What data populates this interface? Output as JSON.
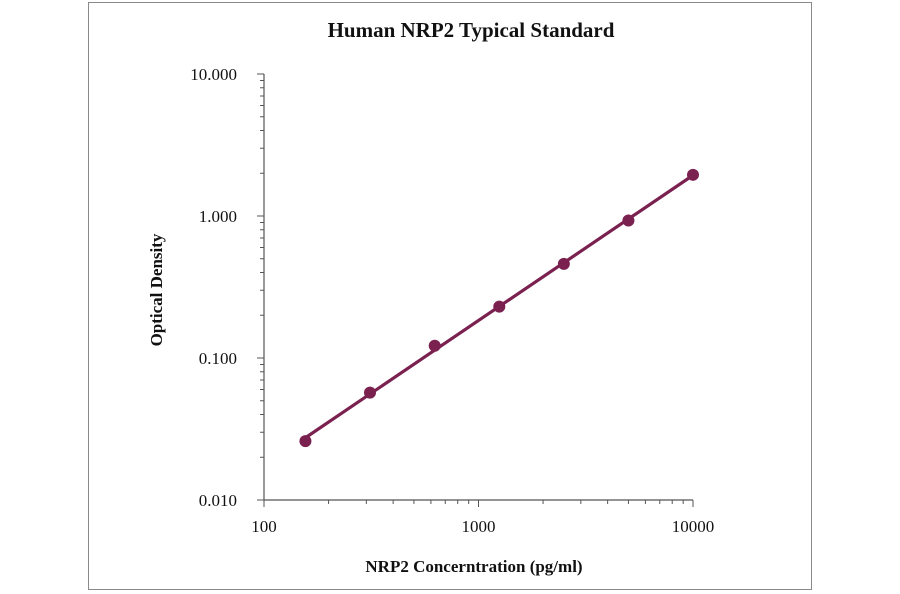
{
  "chart_data": {
    "type": "line",
    "title": "Human NRP2 Typical Standard",
    "xlabel": "NRP2 Concerntration (pg/ml)",
    "ylabel": "Optical Density",
    "xscale": "log",
    "yscale": "log",
    "xlim": [
      100,
      10000
    ],
    "ylim": [
      0.01,
      10
    ],
    "x_ticks": [
      "100",
      "1000",
      "10000"
    ],
    "y_ticks": [
      "10.000",
      "1.000",
      "0.100",
      "0.010"
    ],
    "grid": false,
    "legend": "none",
    "series": [
      {
        "x": [
          156,
          312,
          625,
          1250,
          2500,
          5000,
          10000
        ],
        "y": [
          0.026,
          0.057,
          0.122,
          0.23,
          0.46,
          0.93,
          1.95
        ]
      }
    ],
    "colors": {
      "series": "#7b2150",
      "axis": "#555555",
      "text": "#111111"
    }
  }
}
